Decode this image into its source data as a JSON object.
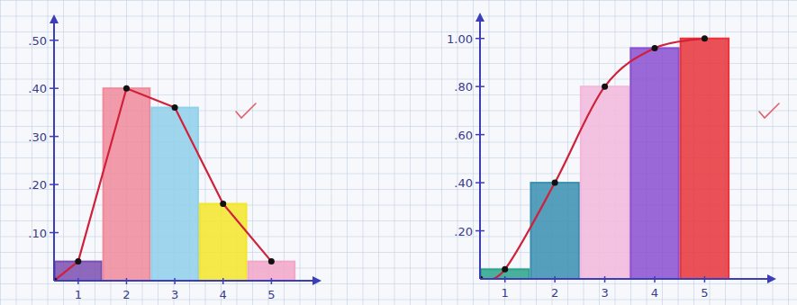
{
  "chart_data": [
    {
      "type": "bar",
      "x": [
        1,
        2,
        3,
        4,
        5
      ],
      "xlim": [
        0.5,
        6
      ],
      "xticks": [
        1,
        2,
        3,
        4,
        5
      ],
      "ylim": [
        0,
        0.55
      ],
      "yticks": [
        {
          "value": 0.1,
          "label": ".10"
        },
        {
          "value": 0.2,
          "label": ".20"
        },
        {
          "value": 0.3,
          "label": ".30"
        },
        {
          "value": 0.4,
          "label": ".40"
        },
        {
          "value": 0.5,
          "label": ".50"
        }
      ],
      "grid": false,
      "series": [
        {
          "type": "bar",
          "values": [
            0.04,
            0.4,
            0.36,
            0.16,
            0.04
          ],
          "colors": [
            "#7b4fb0",
            "#f08a9a",
            "#8fd0ea",
            "#f5e62a",
            "#f2a6c8"
          ]
        },
        {
          "type": "line",
          "x": [
            0.5,
            1,
            2,
            3,
            4,
            5
          ],
          "values": [
            0,
            0.04,
            0.4,
            0.36,
            0.16,
            0.04
          ],
          "color": "#d0203a",
          "marker": "circle",
          "line_style": "solid"
        }
      ]
    },
    {
      "type": "bar",
      "x": [
        1,
        2,
        3,
        4,
        5
      ],
      "xlim": [
        0.5,
        6.4
      ],
      "xticks": [
        1,
        2,
        3,
        4,
        5
      ],
      "ylim": [
        0,
        1.1
      ],
      "yticks": [
        {
          "value": 0.2,
          "label": ".20"
        },
        {
          "value": 0.4,
          "label": ".40"
        },
        {
          "value": 0.6,
          "label": ".60"
        },
        {
          "value": 0.8,
          "label": ".80"
        },
        {
          "value": 1.0,
          "label": "1.00"
        }
      ],
      "grid": false,
      "series": [
        {
          "type": "bar",
          "values": [
            0.04,
            0.4,
            0.8,
            0.96,
            1.0
          ],
          "colors": [
            "#2aa58a",
            "#3a8fb0",
            "#f3b8dc",
            "#8a4fd0",
            "#e8343a"
          ]
        },
        {
          "type": "line",
          "x": [
            0.5,
            1,
            2,
            3,
            4,
            5
          ],
          "values": [
            0,
            0.04,
            0.4,
            0.8,
            0.96,
            1.0
          ],
          "color": "#d0203a",
          "marker": "circle",
          "line_style": "curved"
        }
      ]
    }
  ]
}
